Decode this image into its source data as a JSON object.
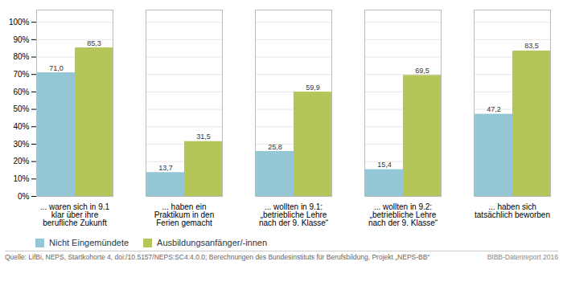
{
  "chart_data": {
    "type": "bar",
    "categories": [
      "... waren sich in 9.1\nklar über ihre\nberufliche Zukunft",
      "... haben ein\nPraktikum in den\nFerien gemacht",
      "... wollten in 9.1:\n„betriebliche Lehre\nnach der 9. Klasse“",
      "... wollten in 9.2:\n„betriebliche Lehre\nnach der 9. Klasse“",
      "... haben sich\ntatsächlich beworben"
    ],
    "series": [
      {
        "name": "Nicht Eingemündete",
        "color": "#94c6d6",
        "values": [
          71.0,
          13.7,
          25.8,
          15.4,
          47.2
        ],
        "value_labels": [
          "71,0",
          "13,7",
          "25,8",
          "15,4",
          "47,2"
        ]
      },
      {
        "name": "Ausbildungsanfänger/-innen",
        "color": "#b5c55a",
        "values": [
          85.3,
          31.5,
          59.9,
          69.5,
          83.5
        ],
        "value_labels": [
          "85,3",
          "31,5",
          "59,9",
          "69,5",
          "83,5"
        ]
      }
    ],
    "ylim": [
      0,
      107
    ],
    "yticks": [
      {
        "value": 0,
        "label": "0%"
      },
      {
        "value": 10,
        "label": "10%"
      },
      {
        "value": 20,
        "label": "20%"
      },
      {
        "value": 30,
        "label": "30%"
      },
      {
        "value": 40,
        "label": "40%"
      },
      {
        "value": 50,
        "label": "50%"
      },
      {
        "value": 60,
        "label": "60%"
      },
      {
        "value": 70,
        "label": "70%"
      },
      {
        "value": 80,
        "label": "80%"
      },
      {
        "value": 90,
        "label": "90%"
      },
      {
        "value": 100,
        "label": "100%"
      }
    ],
    "grid": true,
    "data_labels": true,
    "legend": "bottom",
    "annotations": [
      "Quelle: LifBi, NEPS, Startkohorte 4, doi:/10.5157/NEPS:SC4:4.0.0; Berechnungen des Bundesinstituts für Berufsbildung, Projekt „NEPS-BB“",
      "BIBB-Datenreport 2016"
    ]
  }
}
